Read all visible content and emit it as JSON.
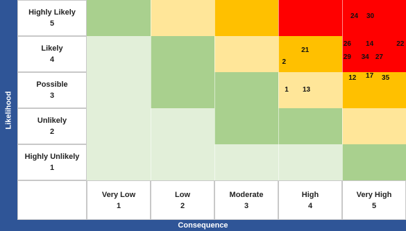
{
  "chart_data": {
    "type": "heatmap",
    "xlabel": "Consequence",
    "ylabel": "Likelihood",
    "rows": [
      {
        "name": "Highly Likely",
        "level": "5"
      },
      {
        "name": "Likely",
        "level": "4"
      },
      {
        "name": "Possible",
        "level": "3"
      },
      {
        "name": "Unlikely",
        "level": "2"
      },
      {
        "name": "Highly Unlikely",
        "level": "1"
      }
    ],
    "columns": [
      {
        "name": "Very Low",
        "level": "1"
      },
      {
        "name": "Low",
        "level": "2"
      },
      {
        "name": "Moderate",
        "level": "3"
      },
      {
        "name": "High",
        "level": "4"
      },
      {
        "name": "Very High",
        "level": "5"
      }
    ],
    "colors": {
      "verylow": "#e2efd9",
      "low": "#a9d08e",
      "medium": "#ffe699",
      "high": "#ffc000",
      "extreme": "#ff0000"
    },
    "cells": [
      [
        "low",
        "medium",
        "high",
        "extreme",
        "extreme"
      ],
      [
        "verylow",
        "low",
        "medium",
        "high",
        "extreme"
      ],
      [
        "verylow",
        "low",
        "low",
        "medium",
        "high"
      ],
      [
        "verylow",
        "verylow",
        "low",
        "low",
        "medium"
      ],
      [
        "verylow",
        "verylow",
        "verylow",
        "verylow",
        "low"
      ]
    ],
    "points": [
      {
        "label": "24",
        "row": 0,
        "col": 4,
        "fx": 0.13,
        "fy": 0.45
      },
      {
        "label": "30",
        "row": 0,
        "col": 4,
        "fx": 0.38,
        "fy": 0.45
      },
      {
        "label": "26",
        "row": 1,
        "col": 4,
        "fx": 0.02,
        "fy": 0.22
      },
      {
        "label": "14",
        "row": 1,
        "col": 4,
        "fx": 0.37,
        "fy": 0.22
      },
      {
        "label": "22",
        "row": 1,
        "col": 4,
        "fx": 0.85,
        "fy": 0.22
      },
      {
        "label": "29",
        "row": 1,
        "col": 4,
        "fx": 0.02,
        "fy": 0.58
      },
      {
        "label": "34",
        "row": 1,
        "col": 4,
        "fx": 0.3,
        "fy": 0.58
      },
      {
        "label": "27",
        "row": 1,
        "col": 4,
        "fx": 0.52,
        "fy": 0.58
      },
      {
        "label": "21",
        "row": 1,
        "col": 3,
        "fx": 0.36,
        "fy": 0.38
      },
      {
        "label": "2",
        "row": 1,
        "col": 3,
        "fx": 0.06,
        "fy": 0.72
      },
      {
        "label": "12",
        "row": 2,
        "col": 4,
        "fx": 0.1,
        "fy": 0.15
      },
      {
        "label": "17",
        "row": 2,
        "col": 4,
        "fx": 0.37,
        "fy": 0.1
      },
      {
        "label": "35",
        "row": 2,
        "col": 4,
        "fx": 0.62,
        "fy": 0.15
      },
      {
        "label": "1",
        "row": 2,
        "col": 3,
        "fx": 0.1,
        "fy": 0.48
      },
      {
        "label": "13",
        "row": 2,
        "col": 3,
        "fx": 0.38,
        "fy": 0.48
      }
    ]
  }
}
